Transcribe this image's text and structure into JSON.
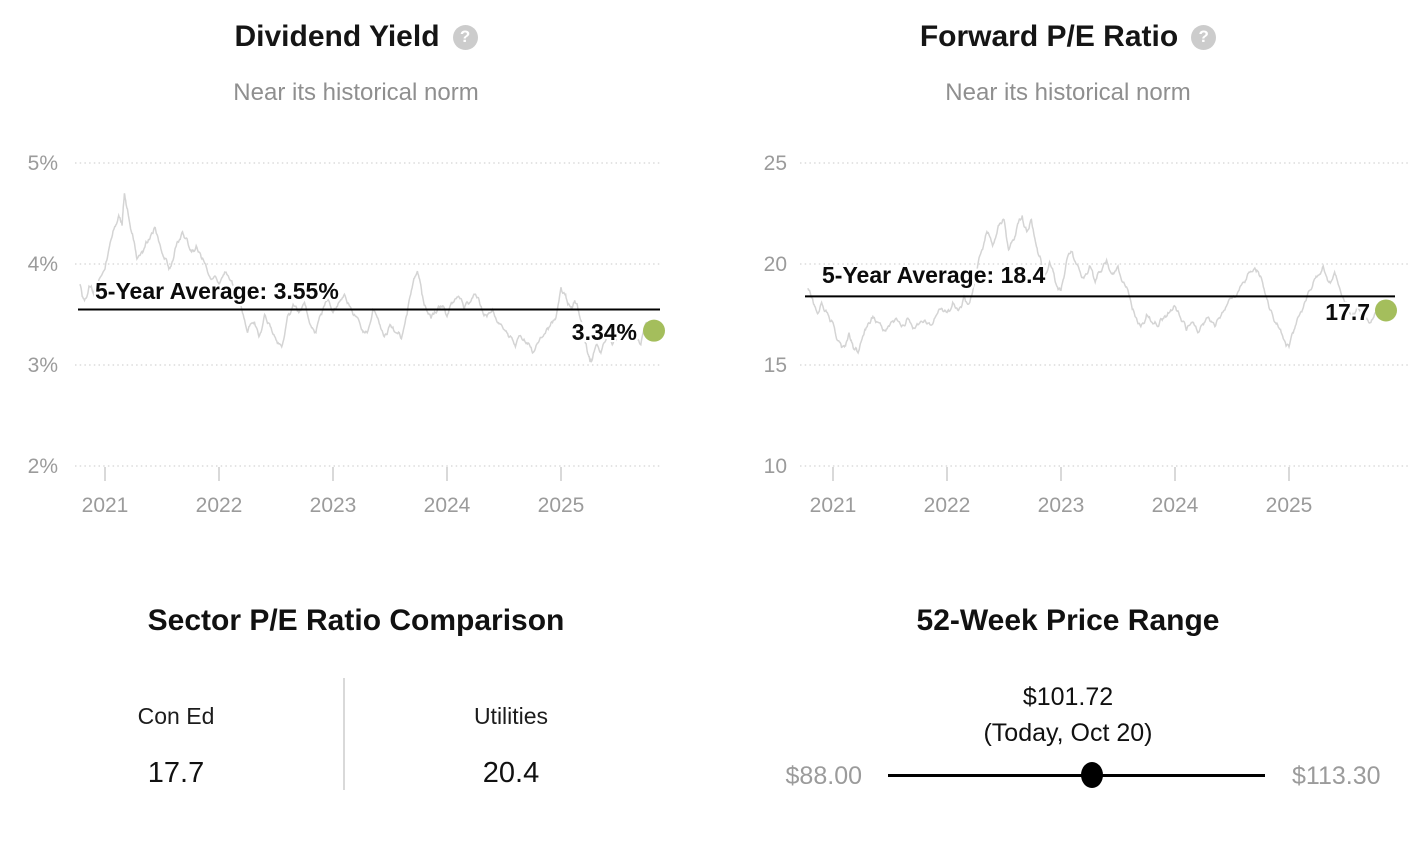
{
  "icons": {
    "help": "?"
  },
  "colors": {
    "accent_green": "#a4be5c",
    "series_gray": "#d4d4d4",
    "gridline_gray": "#dcdcdc",
    "tick_gray": "#cccccc",
    "axis_text_gray": "#9b9b9b",
    "muted_gray": "#8f8f8f",
    "text_black": "#151515"
  },
  "chart_data": [
    {
      "id": "dividend_yield",
      "type": "line",
      "title": "Dividend Yield",
      "subtitle": "Near its historical norm",
      "average_label": "5-Year Average: 3.55%",
      "average_value": 3.55,
      "current_label": "3.34%",
      "current_value": 3.34,
      "ylim": [
        2,
        5
      ],
      "grid": "dotted-horizontal",
      "legend": "none",
      "y_ticks": [
        {
          "value": 5,
          "label": "5%"
        },
        {
          "value": 4,
          "label": "4%"
        },
        {
          "value": 3,
          "label": "3%"
        },
        {
          "value": 2,
          "label": "2%"
        }
      ],
      "x_ticks": [
        {
          "value": 2021,
          "label": "2021"
        },
        {
          "value": 2022,
          "label": "2022"
        },
        {
          "value": 2023,
          "label": "2023"
        },
        {
          "value": 2024,
          "label": "2024"
        },
        {
          "value": 2025,
          "label": "2025"
        }
      ],
      "series": [
        [
          2020.78,
          3.8
        ],
        [
          2020.82,
          3.64
        ],
        [
          2020.86,
          3.78
        ],
        [
          2020.9,
          3.7
        ],
        [
          2020.94,
          3.82
        ],
        [
          2021.0,
          3.95
        ],
        [
          2021.04,
          4.18
        ],
        [
          2021.08,
          4.35
        ],
        [
          2021.12,
          4.48
        ],
        [
          2021.15,
          4.38
        ],
        [
          2021.17,
          4.7
        ],
        [
          2021.2,
          4.52
        ],
        [
          2021.24,
          4.3
        ],
        [
          2021.28,
          4.05
        ],
        [
          2021.32,
          4.12
        ],
        [
          2021.36,
          4.22
        ],
        [
          2021.4,
          4.28
        ],
        [
          2021.44,
          4.36
        ],
        [
          2021.48,
          4.2
        ],
        [
          2021.52,
          4.05
        ],
        [
          2021.56,
          3.95
        ],
        [
          2021.6,
          4.05
        ],
        [
          2021.64,
          4.22
        ],
        [
          2021.68,
          4.32
        ],
        [
          2021.72,
          4.25
        ],
        [
          2021.76,
          4.12
        ],
        [
          2021.8,
          4.18
        ],
        [
          2021.85,
          4.05
        ],
        [
          2021.9,
          3.92
        ],
        [
          2021.95,
          3.86
        ],
        [
          2022.0,
          3.8
        ],
        [
          2022.05,
          3.92
        ],
        [
          2022.1,
          3.84
        ],
        [
          2022.15,
          3.7
        ],
        [
          2022.2,
          3.55
        ],
        [
          2022.25,
          3.32
        ],
        [
          2022.3,
          3.42
        ],
        [
          2022.35,
          3.28
        ],
        [
          2022.4,
          3.5
        ],
        [
          2022.45,
          3.38
        ],
        [
          2022.5,
          3.25
        ],
        [
          2022.55,
          3.18
        ],
        [
          2022.6,
          3.48
        ],
        [
          2022.65,
          3.6
        ],
        [
          2022.7,
          3.52
        ],
        [
          2022.75,
          3.62
        ],
        [
          2022.8,
          3.4
        ],
        [
          2022.85,
          3.32
        ],
        [
          2022.9,
          3.5
        ],
        [
          2022.95,
          3.64
        ],
        [
          2023.0,
          3.52
        ],
        [
          2023.05,
          3.62
        ],
        [
          2023.1,
          3.7
        ],
        [
          2023.15,
          3.58
        ],
        [
          2023.2,
          3.48
        ],
        [
          2023.25,
          3.35
        ],
        [
          2023.3,
          3.32
        ],
        [
          2023.35,
          3.55
        ],
        [
          2023.4,
          3.44
        ],
        [
          2023.45,
          3.28
        ],
        [
          2023.5,
          3.4
        ],
        [
          2023.55,
          3.32
        ],
        [
          2023.6,
          3.26
        ],
        [
          2023.65,
          3.5
        ],
        [
          2023.7,
          3.8
        ],
        [
          2023.74,
          3.93
        ],
        [
          2023.78,
          3.7
        ],
        [
          2023.82,
          3.55
        ],
        [
          2023.86,
          3.46
        ],
        [
          2023.9,
          3.52
        ],
        [
          2023.95,
          3.58
        ],
        [
          2024.0,
          3.48
        ],
        [
          2024.05,
          3.62
        ],
        [
          2024.1,
          3.68
        ],
        [
          2024.15,
          3.55
        ],
        [
          2024.2,
          3.62
        ],
        [
          2024.25,
          3.7
        ],
        [
          2024.3,
          3.58
        ],
        [
          2024.35,
          3.48
        ],
        [
          2024.4,
          3.55
        ],
        [
          2024.45,
          3.42
        ],
        [
          2024.5,
          3.35
        ],
        [
          2024.55,
          3.28
        ],
        [
          2024.6,
          3.18
        ],
        [
          2024.65,
          3.28
        ],
        [
          2024.7,
          3.22
        ],
        [
          2024.75,
          3.12
        ],
        [
          2024.8,
          3.22
        ],
        [
          2024.85,
          3.3
        ],
        [
          2024.9,
          3.38
        ],
        [
          2024.95,
          3.45
        ],
        [
          2025.0,
          3.77
        ],
        [
          2025.04,
          3.7
        ],
        [
          2025.08,
          3.58
        ],
        [
          2025.12,
          3.64
        ],
        [
          2025.16,
          3.5
        ],
        [
          2025.2,
          3.3
        ],
        [
          2025.24,
          3.1
        ],
        [
          2025.27,
          3.04
        ],
        [
          2025.31,
          3.2
        ],
        [
          2025.35,
          3.12
        ],
        [
          2025.4,
          3.28
        ],
        [
          2025.45,
          3.2
        ],
        [
          2025.5,
          3.32
        ],
        [
          2025.55,
          3.25
        ],
        [
          2025.6,
          3.38
        ],
        [
          2025.65,
          3.28
        ],
        [
          2025.7,
          3.2
        ],
        [
          2025.75,
          3.42
        ],
        [
          2025.8,
          3.34
        ]
      ]
    },
    {
      "id": "forward_pe",
      "type": "line",
      "title": "Forward P/E Ratio",
      "subtitle": "Near its historical norm",
      "average_label": "5-Year Average: 18.4",
      "average_value": 18.4,
      "current_label": "17.7",
      "current_value": 17.7,
      "ylim": [
        10,
        25
      ],
      "grid": "dotted-horizontal",
      "legend": "none",
      "y_ticks": [
        {
          "value": 25,
          "label": "25"
        },
        {
          "value": 20,
          "label": "20"
        },
        {
          "value": 15,
          "label": "15"
        },
        {
          "value": 10,
          "label": "10"
        }
      ],
      "x_ticks": [
        {
          "value": 2021,
          "label": "2021"
        },
        {
          "value": 2022,
          "label": "2022"
        },
        {
          "value": 2023,
          "label": "2023"
        },
        {
          "value": 2024,
          "label": "2024"
        },
        {
          "value": 2025,
          "label": "2025"
        }
      ],
      "series": [
        [
          2020.78,
          18.8
        ],
        [
          2020.82,
          18.3
        ],
        [
          2020.86,
          17.6
        ],
        [
          2020.9,
          18.1
        ],
        [
          2020.95,
          17.6
        ],
        [
          2021.0,
          17.1
        ],
        [
          2021.05,
          16.2
        ],
        [
          2021.1,
          15.9
        ],
        [
          2021.14,
          16.6
        ],
        [
          2021.18,
          15.8
        ],
        [
          2021.22,
          15.6
        ],
        [
          2021.26,
          16.4
        ],
        [
          2021.3,
          16.9
        ],
        [
          2021.35,
          17.4
        ],
        [
          2021.4,
          17.1
        ],
        [
          2021.45,
          16.7
        ],
        [
          2021.5,
          17.0
        ],
        [
          2021.55,
          17.3
        ],
        [
          2021.6,
          16.9
        ],
        [
          2021.65,
          17.3
        ],
        [
          2021.7,
          16.8
        ],
        [
          2021.75,
          17.0
        ],
        [
          2021.8,
          17.2
        ],
        [
          2021.85,
          17.0
        ],
        [
          2021.9,
          17.4
        ],
        [
          2021.95,
          17.8
        ],
        [
          2022.0,
          17.6
        ],
        [
          2022.05,
          18.1
        ],
        [
          2022.1,
          17.7
        ],
        [
          2022.15,
          18.4
        ],
        [
          2022.2,
          18.1
        ],
        [
          2022.25,
          19.3
        ],
        [
          2022.3,
          20.6
        ],
        [
          2022.35,
          21.6
        ],
        [
          2022.4,
          20.9
        ],
        [
          2022.45,
          21.9
        ],
        [
          2022.5,
          22.2
        ],
        [
          2022.54,
          20.7
        ],
        [
          2022.58,
          21.2
        ],
        [
          2022.62,
          22.0
        ],
        [
          2022.66,
          22.4
        ],
        [
          2022.7,
          21.6
        ],
        [
          2022.74,
          22.2
        ],
        [
          2022.78,
          21.0
        ],
        [
          2022.82,
          20.3
        ],
        [
          2022.86,
          19.4
        ],
        [
          2022.9,
          20.1
        ],
        [
          2022.95,
          19.1
        ],
        [
          2023.0,
          18.7
        ],
        [
          2023.05,
          20.2
        ],
        [
          2023.1,
          20.6
        ],
        [
          2023.15,
          19.9
        ],
        [
          2023.2,
          19.3
        ],
        [
          2023.25,
          19.9
        ],
        [
          2023.3,
          19.1
        ],
        [
          2023.35,
          19.6
        ],
        [
          2023.4,
          20.2
        ],
        [
          2023.45,
          19.5
        ],
        [
          2023.5,
          19.9
        ],
        [
          2023.55,
          19.1
        ],
        [
          2023.6,
          18.4
        ],
        [
          2023.65,
          17.4
        ],
        [
          2023.7,
          16.9
        ],
        [
          2023.75,
          17.5
        ],
        [
          2023.8,
          17.1
        ],
        [
          2023.85,
          16.9
        ],
        [
          2023.9,
          17.3
        ],
        [
          2023.95,
          17.6
        ],
        [
          2024.0,
          17.9
        ],
        [
          2024.05,
          17.3
        ],
        [
          2024.1,
          16.7
        ],
        [
          2024.15,
          17.1
        ],
        [
          2024.2,
          16.6
        ],
        [
          2024.25,
          17.0
        ],
        [
          2024.3,
          17.3
        ],
        [
          2024.35,
          16.9
        ],
        [
          2024.4,
          17.4
        ],
        [
          2024.45,
          17.9
        ],
        [
          2024.5,
          18.3
        ],
        [
          2024.55,
          18.6
        ],
        [
          2024.6,
          19.1
        ],
        [
          2024.65,
          19.6
        ],
        [
          2024.7,
          19.8
        ],
        [
          2024.75,
          19.4
        ],
        [
          2024.8,
          18.4
        ],
        [
          2024.85,
          17.6
        ],
        [
          2024.9,
          17.0
        ],
        [
          2024.95,
          16.3
        ],
        [
          2025.0,
          15.9
        ],
        [
          2025.05,
          16.8
        ],
        [
          2025.1,
          17.6
        ],
        [
          2025.15,
          18.2
        ],
        [
          2025.2,
          18.8
        ],
        [
          2025.25,
          19.4
        ],
        [
          2025.3,
          19.9
        ],
        [
          2025.35,
          19.1
        ],
        [
          2025.4,
          19.6
        ],
        [
          2025.45,
          18.7
        ],
        [
          2025.5,
          18.1
        ],
        [
          2025.55,
          17.4
        ],
        [
          2025.6,
          17.9
        ],
        [
          2025.65,
          17.3
        ],
        [
          2025.7,
          17.1
        ],
        [
          2025.75,
          17.5
        ],
        [
          2025.8,
          17.4
        ],
        [
          2025.85,
          17.7
        ]
      ]
    },
    {
      "id": "sector_pe_comparison",
      "type": "table",
      "title": "Sector P/E Ratio Comparison",
      "columns": [
        {
          "label": "Con Ed",
          "value": "17.7"
        },
        {
          "label": "Utilities",
          "value": "20.4"
        }
      ]
    },
    {
      "id": "price_range_52w",
      "type": "range",
      "title": "52-Week Price Range",
      "current_label": "$101.72",
      "current_sub_label": "(Today, Oct 20)",
      "current_value": 101.72,
      "min_label": "$88.00",
      "min_value": 88.0,
      "max_label": "$113.30",
      "max_value": 113.3
    }
  ]
}
